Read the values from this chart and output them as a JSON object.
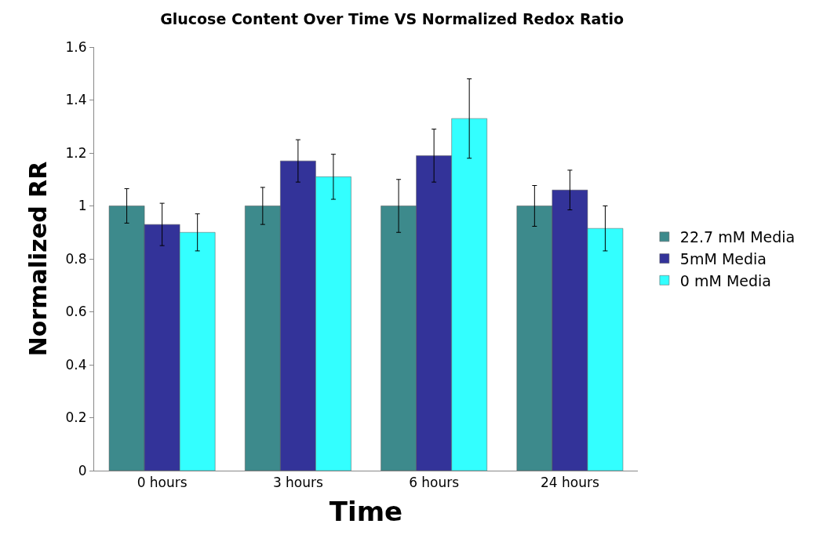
{
  "chart_data": {
    "type": "bar",
    "title": "Glucose Content Over Time VS Normalized Redox Ratio",
    "xlabel": "Time",
    "ylabel": "Normalized RR",
    "categories": [
      "0 hours",
      "3 hours",
      "6 hours",
      "24 hours"
    ],
    "series": [
      {
        "name": "22.7 mM Media",
        "color": "#3d8a8c",
        "values": [
          1.0,
          1.0,
          1.0,
          1.0
        ],
        "errors": [
          0.065,
          0.07,
          0.1,
          0.077
        ]
      },
      {
        "name": "5mM Media",
        "color": "#333399",
        "values": [
          0.93,
          1.17,
          1.19,
          1.06
        ],
        "errors": [
          0.08,
          0.08,
          0.1,
          0.075
        ]
      },
      {
        "name": "0 mM Media",
        "color": "#33ffff",
        "values": [
          0.9,
          1.11,
          1.33,
          0.915
        ],
        "errors": [
          0.07,
          0.085,
          0.15,
          0.085
        ]
      }
    ],
    "ylim": [
      0,
      1.6
    ],
    "yticks": [
      0,
      0.2,
      0.4,
      0.6,
      0.8,
      1,
      1.2,
      1.4,
      1.6
    ],
    "legend": "right"
  }
}
